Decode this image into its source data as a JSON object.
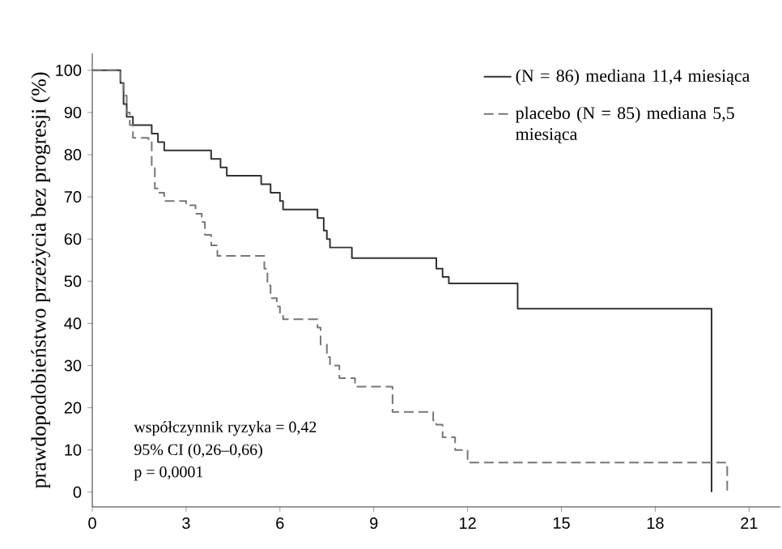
{
  "chart_data": {
    "type": "step",
    "ylabel": "prawdopodobieństwo przeżycia bez progresji (%)",
    "xlim": [
      0,
      22
    ],
    "ylim": [
      -3.5,
      104
    ],
    "xticks": [
      0,
      3,
      6,
      9,
      12,
      15,
      18,
      21
    ],
    "yticks": [
      0,
      10,
      20,
      30,
      40,
      50,
      60,
      70,
      80,
      90,
      100
    ],
    "legend": "top right",
    "grid": false,
    "marker": "none",
    "series": [
      {
        "name": "(N = 86) mediana 11,4 miesiąca",
        "color": "#333333",
        "line_style": "solid",
        "x": [
          0,
          0.8,
          0.9,
          1.0,
          1.1,
          1.3,
          1.9,
          2.1,
          2.3,
          3.8,
          4.1,
          4.3,
          5.4,
          5.7,
          6.0,
          6.1,
          7.2,
          7.4,
          7.5,
          7.6,
          8.3,
          11.0,
          11.2,
          11.4,
          13.6,
          19.8
        ],
        "values": [
          100,
          100,
          97,
          92,
          89,
          87,
          85,
          83,
          81,
          79,
          77,
          75,
          73,
          71,
          69,
          67,
          65,
          62,
          60,
          58,
          55.5,
          53,
          51,
          49.5,
          43.5,
          0
        ]
      },
      {
        "name": "placebo (N = 85) mediana 5,5 miesiąca",
        "color": "#777777",
        "line_style": "dashed",
        "x": [
          0,
          0.8,
          0.9,
          1.0,
          1.1,
          1.2,
          1.3,
          1.8,
          1.9,
          2.0,
          2.1,
          2.3,
          3.0,
          3.3,
          3.5,
          3.6,
          3.8,
          4.0,
          5.5,
          5.6,
          5.7,
          5.9,
          6.0,
          6.1,
          7.2,
          7.3,
          7.5,
          7.6,
          7.9,
          8.4,
          9.6,
          10.9,
          11.0,
          11.2,
          11.6,
          12.0,
          20.3
        ],
        "values": [
          100,
          100,
          97,
          94,
          90,
          87,
          84,
          83,
          77,
          72,
          71,
          69,
          68,
          66,
          64,
          61,
          58.5,
          56,
          53,
          49,
          46,
          44,
          42,
          41,
          39,
          35,
          32,
          30,
          27,
          25,
          19,
          17,
          16,
          13,
          10,
          7,
          0
        ]
      }
    ],
    "annotations": [
      "współczynnik ryzyka = 0,42",
      "95% CI (0,26–0,66)",
      "p = 0,0001"
    ]
  }
}
